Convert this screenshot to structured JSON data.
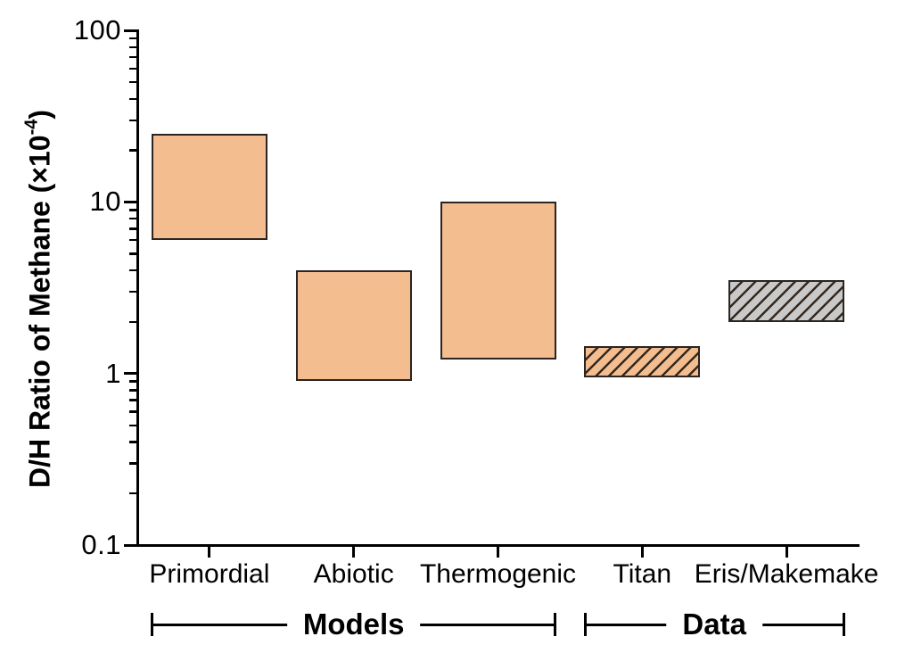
{
  "chart_data": {
    "type": "bar",
    "subtype": "floating-range-bars",
    "ylabel": "D/H Ratio of Methane (×10⁻⁴)",
    "ylabel_pre": "D/H Ratio of Methane (×10",
    "ylabel_sup": "-4",
    "ylabel_post": ")",
    "yscale": "log",
    "ylim": [
      0.1,
      100
    ],
    "ytick_values": [
      100,
      10,
      1,
      0.1
    ],
    "ytick_labels": [
      "100",
      "10",
      "1",
      "0.1"
    ],
    "grid": false,
    "legend": false,
    "categories": [
      "Primordial",
      "Abiotic",
      "Thermogenic",
      "Titan",
      "Eris/Makemake"
    ],
    "bars": [
      {
        "category": "Primordial",
        "low": 6.0,
        "high": 25.0,
        "fill": "orange",
        "hatch": false
      },
      {
        "category": "Abiotic",
        "low": 0.9,
        "high": 4.0,
        "fill": "orange",
        "hatch": false
      },
      {
        "category": "Thermogenic",
        "low": 1.2,
        "high": 10.0,
        "fill": "orange",
        "hatch": false
      },
      {
        "category": "Titan",
        "low": 0.95,
        "high": 1.45,
        "fill": "orange",
        "hatch": true
      },
      {
        "category": "Eris/Makemake",
        "low": 2.0,
        "high": 3.5,
        "fill": "gray",
        "hatch": true
      }
    ],
    "groups": [
      {
        "label": "Models",
        "from_category": "Primordial",
        "to_category": "Thermogenic"
      },
      {
        "label": "Data",
        "from_category": "Titan",
        "to_category": "Eris/Makemake"
      }
    ],
    "colors": {
      "bar_orange": "#F4BD90",
      "bar_gray": "#C9C9C9",
      "bar_border": "#2B2420",
      "hatch_line": "#33291F",
      "axis": "#000000",
      "background": "#FFFFFF"
    }
  }
}
